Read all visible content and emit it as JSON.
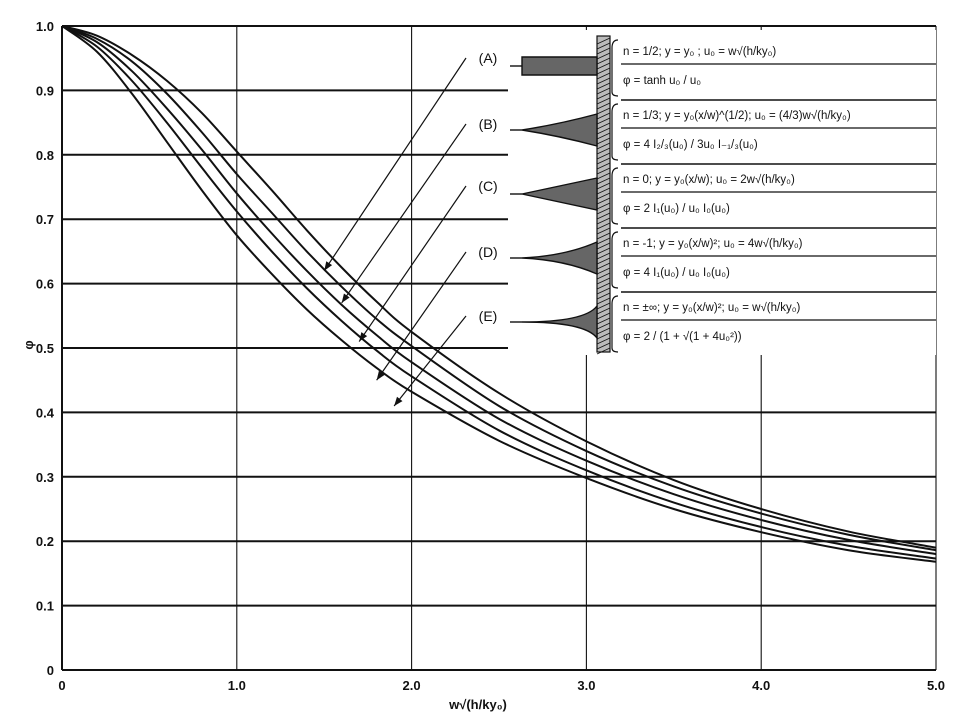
{
  "chart_data": {
    "type": "line",
    "title": "",
    "xlabel": "w√(h/ky₀)",
    "ylabel": "φ",
    "xlim": [
      0,
      5.0
    ],
    "ylim": [
      0,
      1.0
    ],
    "x_ticks": [
      "0",
      "1.0",
      "2.0",
      "3.0",
      "4.0",
      "5.0"
    ],
    "y_ticks": [
      "0",
      "0.1",
      "0.2",
      "0.3",
      "0.4",
      "0.5",
      "0.6",
      "0.7",
      "0.8",
      "0.9",
      "1.0"
    ],
    "grid": true,
    "legend_placement": "top-right",
    "series": [
      {
        "name": "(A)",
        "x": [
          0,
          0.2,
          0.4,
          0.6,
          0.8,
          1.0,
          1.2,
          1.4,
          1.6,
          1.8,
          2.0,
          2.5,
          3.0,
          3.5,
          4.0,
          4.5,
          5.0
        ],
        "y": [
          1.0,
          0.985,
          0.955,
          0.915,
          0.865,
          0.805,
          0.745,
          0.683,
          0.625,
          0.572,
          0.525,
          0.43,
          0.355,
          0.295,
          0.25,
          0.215,
          0.19
        ]
      },
      {
        "name": "(B)",
        "x": [
          0,
          0.2,
          0.4,
          0.6,
          0.8,
          1.0,
          1.2,
          1.4,
          1.6,
          1.8,
          2.0,
          2.5,
          3.0,
          3.5,
          4.0,
          4.5,
          5.0
        ],
        "y": [
          1.0,
          0.98,
          0.945,
          0.895,
          0.835,
          0.77,
          0.71,
          0.65,
          0.595,
          0.545,
          0.503,
          0.41,
          0.34,
          0.285,
          0.243,
          0.21,
          0.186
        ]
      },
      {
        "name": "(C)",
        "x": [
          0,
          0.2,
          0.4,
          0.6,
          0.8,
          1.0,
          1.2,
          1.4,
          1.6,
          1.8,
          2.0,
          2.5,
          3.0,
          3.5,
          4.0,
          4.5,
          5.0
        ],
        "y": [
          1.0,
          0.975,
          0.93,
          0.872,
          0.808,
          0.74,
          0.678,
          0.62,
          0.567,
          0.52,
          0.478,
          0.39,
          0.325,
          0.273,
          0.233,
          0.202,
          0.18
        ]
      },
      {
        "name": "(D)",
        "x": [
          0,
          0.2,
          0.4,
          0.6,
          0.8,
          1.0,
          1.2,
          1.4,
          1.6,
          1.8,
          2.0,
          2.5,
          3.0,
          3.5,
          4.0,
          4.5,
          5.0
        ],
        "y": [
          1.0,
          0.968,
          0.915,
          0.85,
          0.78,
          0.712,
          0.65,
          0.593,
          0.542,
          0.496,
          0.456,
          0.372,
          0.31,
          0.26,
          0.222,
          0.193,
          0.173
        ]
      },
      {
        "name": "(E)",
        "x": [
          0,
          0.2,
          0.4,
          0.6,
          0.8,
          1.0,
          1.2,
          1.4,
          1.6,
          1.8,
          2.0,
          2.5,
          3.0,
          3.5,
          4.0,
          4.5,
          5.0
        ],
        "y": [
          1.0,
          0.96,
          0.895,
          0.82,
          0.745,
          0.675,
          0.615,
          0.56,
          0.512,
          0.469,
          0.432,
          0.356,
          0.298,
          0.25,
          0.214,
          0.186,
          0.168
        ]
      }
    ],
    "curve_label_targets": [
      {
        "label": "(A)",
        "x": 1.5,
        "y": 0.62
      },
      {
        "label": "(B)",
        "x": 1.6,
        "y": 0.57
      },
      {
        "label": "(C)",
        "x": 1.7,
        "y": 0.51
      },
      {
        "label": "(D)",
        "x": 1.8,
        "y": 0.45
      },
      {
        "label": "(E)",
        "x": 1.9,
        "y": 0.41
      }
    ],
    "legend_entries": [
      {
        "line1": "n = 1/2;   y = y₀ ;   u₀ = w√(h/ky₀)",
        "line2": "φ = tanh u₀ / u₀"
      },
      {
        "line1": "n = 1/3;   y = y₀(x/w)^(1/2); u₀ = (4/3)w√(h/ky₀)",
        "line2": "φ = 4 I₂/₃(u₀) / 3u₀ I₋₁/₃(u₀)"
      },
      {
        "line1": "n = 0;   y = y₀(x/w);   u₀ = 2w√(h/ky₀)",
        "line2": "φ = 2 I₁(u₀) / u₀ I₀(u₀)"
      },
      {
        "line1": "n = -1;   y = y₀(x/w)²;   u₀ = 4w√(h/ky₀)",
        "line2": "φ = 4 I₁(u₀) / u₀ I₀(u₀)"
      },
      {
        "line1": "n = ±∞;   y = y₀(x/w)²;  u₀ = w√(h/ky₀)",
        "line2": "φ = 2 / (1 + √(1 + 4u₀²))"
      }
    ]
  }
}
